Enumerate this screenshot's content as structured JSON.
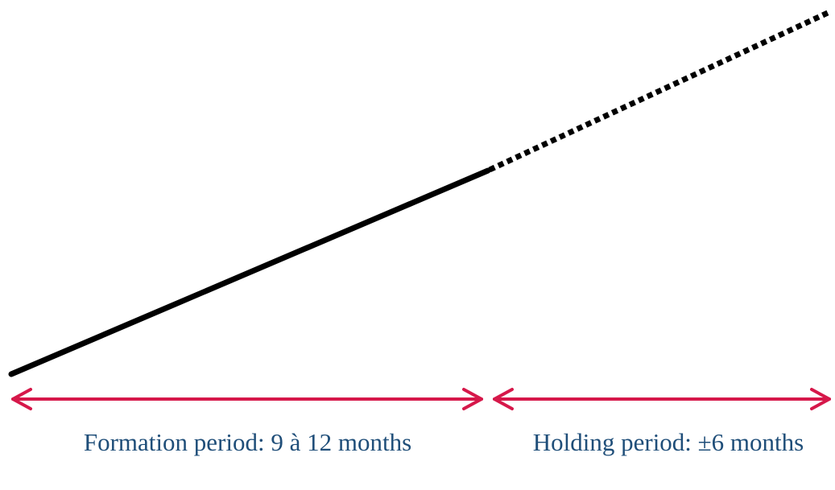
{
  "formation": {
    "label": "Formation period: 9 à 12 months"
  },
  "holding": {
    "label": "Holding period: ±6 months"
  }
}
